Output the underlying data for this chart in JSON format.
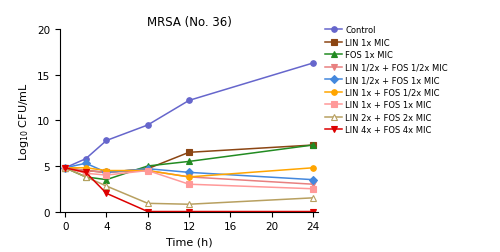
{
  "title": "MRSA (No. 36)",
  "xlabel": "Time (h)",
  "ylabel": "Log$_{10}$ CFU/mL",
  "xlim": [
    -0.5,
    24.5
  ],
  "ylim": [
    0,
    20
  ],
  "xticks": [
    0,
    4,
    8,
    12,
    16,
    20,
    24
  ],
  "yticks": [
    0,
    5,
    10,
    15,
    20
  ],
  "time_points": [
    0,
    2,
    4,
    8,
    12,
    24
  ],
  "series": [
    {
      "label": "Control",
      "color": "#6666CC",
      "marker": "o",
      "marker_fill": "#6666CC",
      "linestyle": "-",
      "values": [
        4.8,
        5.8,
        7.8,
        9.5,
        12.2,
        16.3
      ]
    },
    {
      "label": "LIN 1x MIC",
      "color": "#8B4513",
      "marker": "s",
      "marker_fill": "#8B4513",
      "linestyle": "-",
      "values": [
        4.8,
        4.5,
        4.3,
        4.7,
        6.5,
        7.3
      ]
    },
    {
      "label": "FOS 1x MIC",
      "color": "#228B22",
      "marker": "^",
      "marker_fill": "#228B22",
      "linestyle": "-",
      "values": [
        4.8,
        3.8,
        3.5,
        5.0,
        5.5,
        7.3
      ]
    },
    {
      "label": "LIN 1/2x + FOS 1/2x MIC",
      "color": "#E88080",
      "marker": "v",
      "marker_fill": "#E88080",
      "linestyle": "-",
      "values": [
        4.8,
        4.5,
        4.3,
        4.5,
        3.8,
        3.0
      ]
    },
    {
      "label": "LIN 1/2x + FOS 1x MIC",
      "color": "#4488DD",
      "marker": "D",
      "marker_fill": "#4488DD",
      "linestyle": "-",
      "values": [
        4.8,
        5.3,
        4.3,
        4.7,
        4.3,
        3.5
      ]
    },
    {
      "label": "LIN 1x + FOS 1/2x MIC",
      "color": "#FFA500",
      "marker": "o",
      "marker_fill": "#FFA500",
      "linestyle": "-",
      "values": [
        4.8,
        4.8,
        4.5,
        4.5,
        3.8,
        4.8
      ]
    },
    {
      "label": "LIN 1x + FOS 1x MIC",
      "color": "#FF9999",
      "marker": "s",
      "marker_fill": "#FF9999",
      "linestyle": "-",
      "values": [
        4.8,
        4.2,
        4.0,
        4.5,
        3.0,
        2.5
      ]
    },
    {
      "label": "LIN 2x + FOS 2x MIC",
      "color": "#B8A060",
      "marker": "^",
      "marker_fill": "white",
      "linestyle": "-",
      "values": [
        4.8,
        3.8,
        2.8,
        0.9,
        0.8,
        1.5
      ]
    },
    {
      "label": "LIN 4x + FOS 4x MIC",
      "color": "#DD0000",
      "marker": "v",
      "marker_fill": "#DD0000",
      "linestyle": "-",
      "values": [
        4.8,
        4.3,
        2.0,
        0.0,
        0.0,
        0.0
      ]
    }
  ]
}
